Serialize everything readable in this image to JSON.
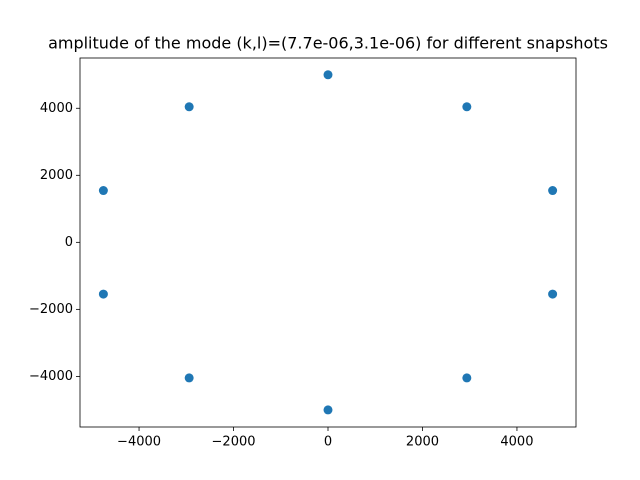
{
  "chart_data": {
    "type": "scatter",
    "title": "amplitude of the mode (k,l)=(7.7e-06,3.1e-06) for different snapshots",
    "color": "#1f77b4",
    "x": [
      0,
      2939,
      4755,
      4755,
      2939,
      0,
      -2939,
      -4755,
      -4755,
      -2939
    ],
    "values": [
      5000,
      4045,
      1545,
      -1545,
      -4045,
      -5000,
      -4045,
      -1545,
      1545,
      4045
    ],
    "xlim": [
      -5250,
      5250
    ],
    "ylim": [
      -5510,
      5500
    ],
    "xticks": [
      {
        "value": -4000,
        "label": "−4000"
      },
      {
        "value": -2000,
        "label": "−2000"
      },
      0,
      2000,
      4000
    ],
    "yticks": [
      {
        "value": -4000,
        "label": "−4000"
      },
      {
        "value": -2000,
        "label": "−2000"
      },
      0,
      2000,
      4000
    ],
    "grid": false
  }
}
